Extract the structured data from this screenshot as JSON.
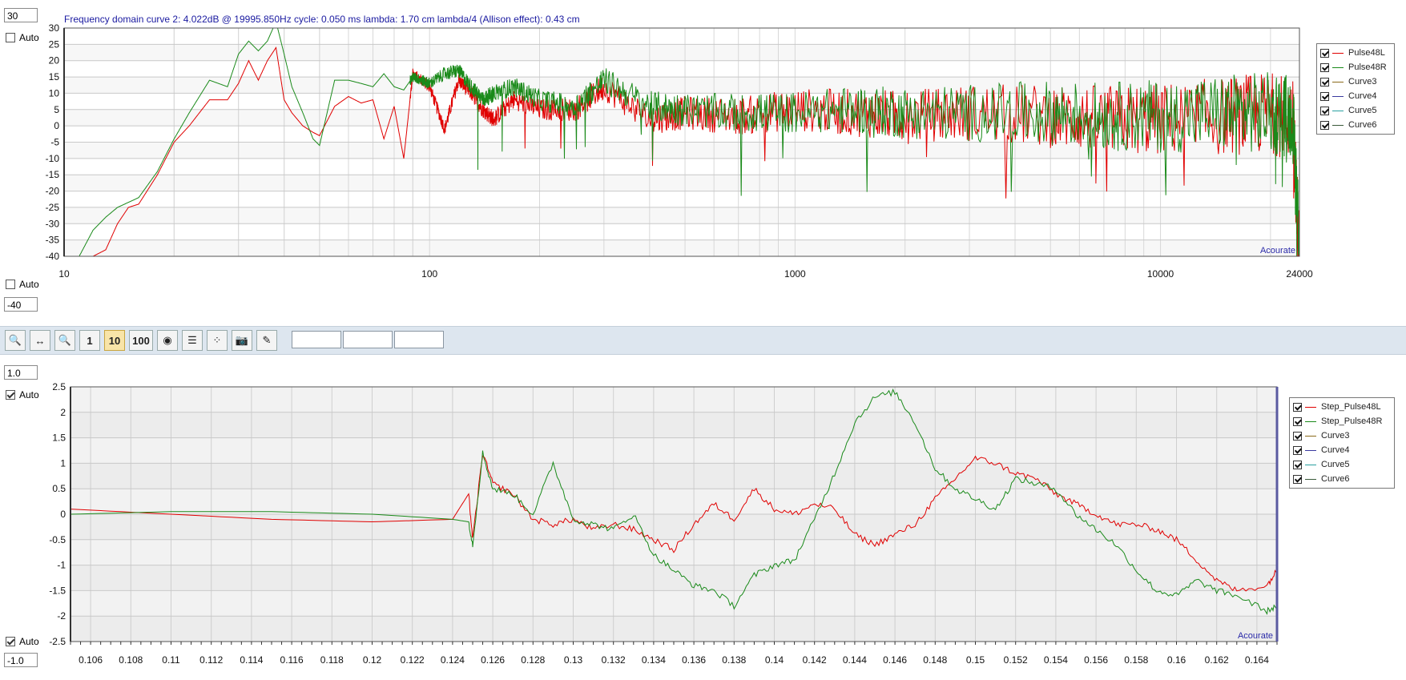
{
  "top_panel": {
    "ymax_value": "30",
    "ymin_value": "-40",
    "auto_top_label": "Auto",
    "auto_bottom_label": "Auto",
    "auto_top_checked": false,
    "auto_bottom_checked": false,
    "info": "Frequency domain curve 2:  4.022dB @ 19995.850Hz   cycle: 0.050 ms   lambda: 1.70 cm  lambda/4 (Allison effect): 0.43 cm",
    "watermark": "Acourate"
  },
  "bottom_panel": {
    "ymax_value": "1.0",
    "ymin_value": "-1.0",
    "auto_top_label": "Auto",
    "auto_bottom_label": "Auto",
    "auto_top_checked": true,
    "auto_bottom_checked": true,
    "watermark": "Acourate"
  },
  "toolbar": {
    "buttons": [
      {
        "name": "zoom-in-icon",
        "label": ""
      },
      {
        "name": "fit-width-icon",
        "label": ""
      },
      {
        "name": "zoom-out-icon",
        "label": ""
      },
      {
        "name": "scale-1-button",
        "label": "1"
      },
      {
        "name": "scale-10-button",
        "label": "10"
      },
      {
        "name": "scale-100-button",
        "label": "100"
      },
      {
        "name": "target-icon",
        "label": ""
      },
      {
        "name": "bars-icon",
        "label": ""
      },
      {
        "name": "scatter-icon",
        "label": ""
      },
      {
        "name": "camera-icon",
        "label": ""
      },
      {
        "name": "edit-icon",
        "label": ""
      }
    ],
    "selected": "scale-10-button"
  },
  "chart_data": [
    {
      "type": "line",
      "xscale": "log",
      "xlim": [
        10,
        24000
      ],
      "ylim": [
        -40,
        30
      ],
      "xticks": [
        10,
        100,
        1000,
        10000,
        24000
      ],
      "xtick_labels": [
        "10",
        "100",
        "1000",
        "10000",
        "24000"
      ],
      "yticks": [
        30,
        25,
        20,
        15,
        10,
        5,
        0,
        -5,
        -10,
        -15,
        -20,
        -25,
        -30,
        -35,
        -40
      ],
      "ytick_labels": [
        "30",
        "25",
        "20",
        "15",
        "10",
        "5",
        "0",
        "-5",
        "-10",
        "-15",
        "-20",
        "-25",
        "-30",
        "-35",
        "-40"
      ],
      "grid": true,
      "legend_position": "right",
      "legend": [
        "Pulse48L",
        "Pulse48R",
        "Curve3",
        "Curve4",
        "Curve5",
        "Curve6"
      ],
      "legend_colors": [
        "#e00000",
        "#1a8a1a",
        "#8a6a1a",
        "#3a3aa0",
        "#2aa0a0",
        "#3a5a3a"
      ],
      "series": [
        {
          "name": "Pulse48L",
          "color": "#e00000",
          "x": [
            12,
            13,
            14,
            15,
            16,
            18,
            20,
            22,
            25,
            28,
            30,
            32,
            34,
            36,
            38,
            40,
            42,
            45,
            48,
            50,
            55,
            60,
            65,
            70,
            75,
            80,
            85,
            90,
            95,
            100,
            110,
            120,
            130,
            140,
            150,
            170,
            200,
            250,
            300,
            400,
            500,
            700,
            1000,
            1500,
            2000,
            3000,
            5000,
            7000,
            10000,
            15000,
            20000,
            23000,
            24000
          ],
          "y": [
            -40,
            -38,
            -30,
            -25,
            -24,
            -15,
            -5,
            0,
            8,
            8,
            13,
            20,
            14,
            20,
            24,
            8,
            4,
            0,
            -2,
            -3,
            6,
            9,
            7,
            8,
            -4,
            6,
            -10,
            16,
            14,
            12,
            -1,
            14,
            10,
            5,
            2,
            8,
            5,
            5,
            12,
            2,
            4,
            3,
            5,
            4,
            3,
            4,
            3,
            2,
            2,
            3,
            4,
            2,
            -40
          ]
        },
        {
          "name": "Pulse48R",
          "color": "#1a8a1a",
          "x": [
            11,
            12,
            13,
            14,
            16,
            18,
            20,
            22,
            25,
            28,
            30,
            32,
            34,
            36,
            38,
            40,
            42,
            45,
            48,
            50,
            55,
            60,
            65,
            70,
            75,
            80,
            85,
            90,
            95,
            100,
            110,
            120,
            130,
            140,
            150,
            170,
            200,
            250,
            300,
            400,
            500,
            700,
            1000,
            1500,
            2000,
            3000,
            5000,
            7000,
            10000,
            15000,
            20000,
            23000,
            24000
          ],
          "y": [
            -40,
            -32,
            -28,
            -25,
            -22,
            -14,
            -4,
            4,
            14,
            12,
            22,
            26,
            23,
            26,
            32,
            22,
            12,
            4,
            -4,
            -6,
            14,
            14,
            13,
            12,
            16,
            12,
            11,
            15,
            14,
            13,
            16,
            17,
            12,
            8,
            10,
            12,
            8,
            6,
            14,
            6,
            5,
            4,
            4,
            5,
            4,
            4,
            4,
            3,
            3,
            4,
            4,
            3,
            -35
          ]
        }
      ]
    },
    {
      "type": "line",
      "xlim": [
        0.105,
        0.165
      ],
      "ylim": [
        -2.5,
        2.5
      ],
      "xticks": [
        0.106,
        0.108,
        0.11,
        0.112,
        0.114,
        0.116,
        0.118,
        0.12,
        0.122,
        0.124,
        0.126,
        0.128,
        0.13,
        0.132,
        0.134,
        0.136,
        0.138,
        0.14,
        0.142,
        0.144,
        0.146,
        0.148,
        0.15,
        0.152,
        0.154,
        0.156,
        0.158,
        0.16,
        0.162,
        0.164
      ],
      "xtick_labels": [
        "0.106",
        "0.108",
        "0.11",
        "0.112",
        "0.114",
        "0.116",
        "0.118",
        "0.12",
        "0.122",
        "0.124",
        "0.126",
        "0.128",
        "0.13",
        "0.132",
        "0.134",
        "0.136",
        "0.138",
        "0.14",
        "0.142",
        "0.144",
        "0.146",
        "0.148",
        "0.15",
        "0.152",
        "0.154",
        "0.156",
        "0.158",
        "0.16",
        "0.162",
        "0.164"
      ],
      "yticks": [
        2.5,
        2,
        1.5,
        1,
        0.5,
        0,
        -0.5,
        -1,
        -1.5,
        -2,
        -2.5
      ],
      "ytick_labels": [
        "2.5",
        "2",
        "1.5",
        "1",
        "0.5",
        "0",
        "-0.5",
        "-1",
        "-1.5",
        "-2",
        "-2.5"
      ],
      "grid": true,
      "legend_position": "right",
      "legend": [
        "Step_Pulse48L",
        "Step_Pulse48R",
        "Curve3",
        "Curve4",
        "Curve5",
        "Curve6"
      ],
      "legend_colors": [
        "#e00000",
        "#1a8a1a",
        "#8a6a1a",
        "#3a3aa0",
        "#2aa0a0",
        "#3a5a3a"
      ],
      "series": [
        {
          "name": "Step_Pulse48L",
          "color": "#e00000",
          "x": [
            0.105,
            0.11,
            0.115,
            0.12,
            0.124,
            0.1248,
            0.125,
            0.1255,
            0.126,
            0.127,
            0.128,
            0.129,
            0.13,
            0.131,
            0.132,
            0.133,
            0.134,
            0.135,
            0.136,
            0.137,
            0.138,
            0.139,
            0.14,
            0.141,
            0.142,
            0.143,
            0.144,
            0.145,
            0.146,
            0.147,
            0.148,
            0.149,
            0.15,
            0.151,
            0.152,
            0.153,
            0.154,
            0.155,
            0.156,
            0.157,
            0.158,
            0.159,
            0.16,
            0.161,
            0.162,
            0.163,
            0.1645,
            0.165
          ],
          "y": [
            0.1,
            0.0,
            -0.1,
            -0.15,
            -0.1,
            0.4,
            -0.5,
            1.2,
            0.6,
            0.4,
            -0.1,
            -0.2,
            -0.1,
            -0.3,
            -0.2,
            -0.3,
            -0.5,
            -0.7,
            -0.2,
            0.2,
            -0.1,
            0.5,
            0.1,
            0.0,
            0.2,
            0.1,
            -0.4,
            -0.6,
            -0.4,
            -0.2,
            0.3,
            0.7,
            1.1,
            1.0,
            0.8,
            0.7,
            0.4,
            0.2,
            0.0,
            -0.2,
            -0.2,
            -0.3,
            -0.5,
            -0.9,
            -1.3,
            -1.5,
            -1.4,
            -1.1
          ]
        },
        {
          "name": "Step_Pulse48R",
          "color": "#1a8a1a",
          "x": [
            0.105,
            0.11,
            0.115,
            0.12,
            0.124,
            0.1248,
            0.125,
            0.1255,
            0.126,
            0.127,
            0.128,
            0.129,
            0.13,
            0.131,
            0.132,
            0.133,
            0.134,
            0.135,
            0.136,
            0.137,
            0.138,
            0.139,
            0.14,
            0.141,
            0.142,
            0.143,
            0.144,
            0.145,
            0.146,
            0.147,
            0.148,
            0.149,
            0.15,
            0.151,
            0.152,
            0.153,
            0.154,
            0.155,
            0.156,
            0.157,
            0.158,
            0.159,
            0.16,
            0.161,
            0.162,
            0.163,
            0.1645,
            0.165
          ],
          "y": [
            0.0,
            0.05,
            0.05,
            0.0,
            -0.1,
            -0.15,
            -0.6,
            1.2,
            0.5,
            0.4,
            0.0,
            1.0,
            -0.1,
            -0.2,
            -0.3,
            0.0,
            -0.8,
            -1.1,
            -1.4,
            -1.5,
            -1.8,
            -1.2,
            -1.0,
            -0.9,
            -0.1,
            0.8,
            1.8,
            2.3,
            2.4,
            1.8,
            0.9,
            0.5,
            0.3,
            0.1,
            0.7,
            0.6,
            0.5,
            0.0,
            -0.3,
            -0.6,
            -1.1,
            -1.5,
            -1.6,
            -1.3,
            -1.5,
            -1.6,
            -1.9,
            -1.8
          ]
        }
      ]
    }
  ]
}
